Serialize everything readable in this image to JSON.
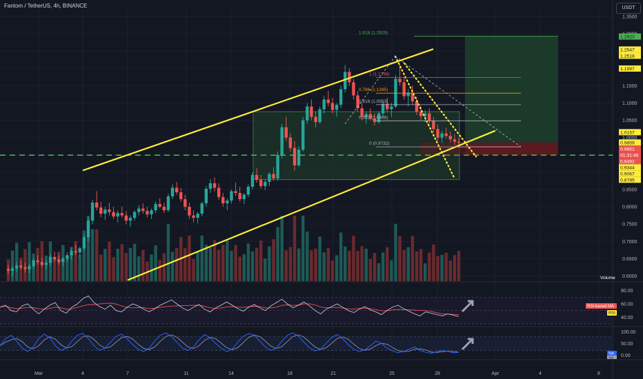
{
  "header": {
    "title": "Fantom / TetherUS, 4h, BINANCE",
    "currency": "USDT"
  },
  "colors": {
    "background": "#131722",
    "up": "#26a69a",
    "down": "#ef5350",
    "channel": "#ffeb3b",
    "support_dash": "#4caf50",
    "rsi": "#d1d4dc",
    "rsi_ma": "#ef5350",
    "stoch_k": "#2962ff",
    "stoch_d": "#9e9eb5",
    "target_zone": "#1b3a2a",
    "stop_zone": "#5a1a1f",
    "range_box": "#21402b"
  },
  "chart_data": {
    "type": "candlestick",
    "symbol": "Fantom / TetherUS",
    "timeframe": "4h",
    "exchange": "BINANCE",
    "y_axis": {
      "ticks": [
        "1.3500",
        "1.3000",
        "1.2500",
        "1.2000",
        "1.1500",
        "1.1000",
        "1.0500",
        "1.0000",
        "0.9500",
        "0.9000",
        "0.8500",
        "0.8000",
        "0.7500",
        "0.7000",
        "0.6500",
        "0.6000"
      ],
      "range": [
        0.585,
        1.37
      ]
    },
    "x_axis": {
      "ticks": [
        "Mar",
        "4",
        "7",
        "11",
        "14",
        "18",
        "21",
        "25",
        "28",
        "Apr",
        "4",
        "8"
      ]
    },
    "price_labels": [
      {
        "text": "1.2923",
        "value": 1.2923,
        "color": "#4caf50"
      },
      {
        "text": "1.2547",
        "value": 1.2547,
        "color": "#ffeb3b"
      },
      {
        "text": "1.2518",
        "value": 1.2518,
        "color": "#ffeb3b"
      },
      {
        "text": "1.1997",
        "value": 1.1997,
        "color": "#ffeb3b"
      },
      {
        "text": "1.0157",
        "value": 1.0157,
        "color": "#ffeb3b"
      },
      {
        "text": "0.9859",
        "value": 0.9859,
        "color": "#ffeb3b"
      },
      {
        "text": "0.9851",
        "value": 0.9851,
        "color": "#ef5350"
      },
      {
        "text": "01:31:45",
        "value": 0.9765,
        "color": "#ef5350"
      },
      {
        "text": "0.9492",
        "value": 0.9492,
        "color": "#ef5350"
      },
      {
        "text": "0.9344",
        "value": 0.9344,
        "color": "#ffeb3b"
      },
      {
        "text": "0.9067",
        "value": 0.9067,
        "color": "#ffeb3b"
      },
      {
        "text": "0.8785",
        "value": 0.8785,
        "color": "#ffeb3b"
      }
    ],
    "fib_levels": [
      {
        "label": "1.618 (1.2929)",
        "value": 1.2929
      },
      {
        "label": "1 (1.1738)",
        "value": 1.1738
      },
      {
        "label": "0.786 (1.1285)",
        "value": 1.1285
      },
      {
        "label": "0.618 (1.0953)",
        "value": 1.0953
      },
      {
        "label": "0.382 (1.0486)",
        "value": 1.0486
      },
      {
        "label": "0 (0.9732)",
        "value": 0.9732
      }
    ],
    "candles": [
      [
        0.62,
        0.632,
        0.605,
        0.615
      ],
      [
        0.615,
        0.628,
        0.6,
        0.622
      ],
      [
        0.622,
        0.64,
        0.612,
        0.63
      ],
      [
        0.63,
        0.645,
        0.618,
        0.625
      ],
      [
        0.625,
        0.638,
        0.61,
        0.62
      ],
      [
        0.62,
        0.635,
        0.608,
        0.628
      ],
      [
        0.628,
        0.65,
        0.62,
        0.645
      ],
      [
        0.645,
        0.66,
        0.632,
        0.64
      ],
      [
        0.64,
        0.652,
        0.625,
        0.632
      ],
      [
        0.632,
        0.645,
        0.62,
        0.638
      ],
      [
        0.638,
        0.662,
        0.63,
        0.655
      ],
      [
        0.655,
        0.67,
        0.64,
        0.648
      ],
      [
        0.648,
        0.66,
        0.632,
        0.64
      ],
      [
        0.64,
        0.655,
        0.628,
        0.65
      ],
      [
        0.65,
        0.668,
        0.64,
        0.66
      ],
      [
        0.66,
        0.68,
        0.648,
        0.672
      ],
      [
        0.672,
        0.69,
        0.66,
        0.668
      ],
      [
        0.668,
        0.685,
        0.655,
        0.68
      ],
      [
        0.68,
        0.72,
        0.672,
        0.712
      ],
      [
        0.712,
        0.77,
        0.7,
        0.76
      ],
      [
        0.76,
        0.82,
        0.75,
        0.812
      ],
      [
        0.812,
        0.845,
        0.79,
        0.798
      ],
      [
        0.798,
        0.815,
        0.77,
        0.78
      ],
      [
        0.78,
        0.8,
        0.762,
        0.792
      ],
      [
        0.792,
        0.812,
        0.775,
        0.785
      ],
      [
        0.785,
        0.8,
        0.765,
        0.772
      ],
      [
        0.772,
        0.79,
        0.755,
        0.782
      ],
      [
        0.782,
        0.8,
        0.768,
        0.775
      ],
      [
        0.775,
        0.788,
        0.75,
        0.76
      ],
      [
        0.76,
        0.775,
        0.742,
        0.768
      ],
      [
        0.768,
        0.79,
        0.76,
        0.785
      ],
      [
        0.785,
        0.805,
        0.775,
        0.795
      ],
      [
        0.795,
        0.81,
        0.78,
        0.788
      ],
      [
        0.788,
        0.8,
        0.77,
        0.778
      ],
      [
        0.778,
        0.795,
        0.765,
        0.79
      ],
      [
        0.79,
        0.815,
        0.782,
        0.808
      ],
      [
        0.808,
        0.825,
        0.795,
        0.8
      ],
      [
        0.8,
        0.812,
        0.782,
        0.79
      ],
      [
        0.79,
        0.838,
        0.785,
        0.83
      ],
      [
        0.83,
        0.865,
        0.822,
        0.855
      ],
      [
        0.855,
        0.872,
        0.835,
        0.842
      ],
      [
        0.842,
        0.855,
        0.815,
        0.822
      ],
      [
        0.822,
        0.835,
        0.79,
        0.8
      ],
      [
        0.8,
        0.812,
        0.765,
        0.775
      ],
      [
        0.775,
        0.79,
        0.755,
        0.768
      ],
      [
        0.768,
        0.785,
        0.752,
        0.78
      ],
      [
        0.78,
        0.815,
        0.772,
        0.81
      ],
      [
        0.81,
        0.86,
        0.8,
        0.852
      ],
      [
        0.852,
        0.88,
        0.84,
        0.868
      ],
      [
        0.868,
        0.885,
        0.845,
        0.855
      ],
      [
        0.855,
        0.868,
        0.82,
        0.828
      ],
      [
        0.828,
        0.84,
        0.8,
        0.81
      ],
      [
        0.81,
        0.825,
        0.79,
        0.818
      ],
      [
        0.818,
        0.85,
        0.81,
        0.845
      ],
      [
        0.845,
        0.87,
        0.832,
        0.84
      ],
      [
        0.84,
        0.858,
        0.815,
        0.822
      ],
      [
        0.822,
        0.84,
        0.808,
        0.835
      ],
      [
        0.835,
        0.865,
        0.828,
        0.858
      ],
      [
        0.858,
        0.9,
        0.85,
        0.892
      ],
      [
        0.892,
        0.912,
        0.87,
        0.878
      ],
      [
        0.878,
        0.892,
        0.852,
        0.86
      ],
      [
        0.86,
        0.88,
        0.848,
        0.872
      ],
      [
        0.872,
        0.9,
        0.86,
        0.895
      ],
      [
        0.895,
        0.915,
        0.875,
        0.882
      ],
      [
        0.882,
        0.96,
        0.875,
        0.95
      ],
      [
        0.95,
        1.04,
        0.94,
        1.03
      ],
      [
        1.03,
        1.06,
        0.99,
        1.0
      ],
      [
        1.0,
        1.012,
        0.96,
        0.97
      ],
      [
        0.97,
        0.99,
        0.905,
        0.92
      ],
      [
        0.92,
        0.975,
        0.915,
        0.965
      ],
      [
        0.965,
        1.06,
        0.96,
        1.05
      ],
      [
        1.05,
        1.1,
        1.04,
        1.09
      ],
      [
        1.09,
        1.11,
        1.05,
        1.06
      ],
      [
        1.06,
        1.075,
        1.03,
        1.045
      ],
      [
        1.045,
        1.09,
        1.04,
        1.082
      ],
      [
        1.082,
        1.12,
        1.07,
        1.11
      ],
      [
        1.11,
        1.135,
        1.09,
        1.1
      ],
      [
        1.1,
        1.115,
        1.07,
        1.08
      ],
      [
        1.08,
        1.1,
        1.06,
        1.095
      ],
      [
        1.095,
        1.15,
        1.085,
        1.14
      ],
      [
        1.14,
        1.21,
        1.13,
        1.19
      ],
      [
        1.19,
        1.2,
        1.15,
        1.16
      ],
      [
        1.16,
        1.17,
        1.11,
        1.122
      ],
      [
        1.122,
        1.135,
        1.075,
        1.085
      ],
      [
        1.085,
        1.1,
        1.05,
        1.06
      ],
      [
        1.06,
        1.075,
        1.04,
        1.068
      ],
      [
        1.068,
        1.085,
        1.05,
        1.055
      ],
      [
        1.055,
        1.07,
        1.035,
        1.045
      ],
      [
        1.045,
        1.075,
        1.04,
        1.07
      ],
      [
        1.07,
        1.105,
        1.06,
        1.098
      ],
      [
        1.098,
        1.115,
        1.072,
        1.082
      ],
      [
        1.082,
        1.1,
        1.06,
        1.09
      ],
      [
        1.09,
        1.18,
        1.085,
        1.17
      ],
      [
        1.17,
        1.21,
        1.15,
        1.16
      ],
      [
        1.16,
        1.175,
        1.11,
        1.12
      ],
      [
        1.12,
        1.14,
        1.09,
        1.13
      ],
      [
        1.13,
        1.15,
        1.095,
        1.105
      ],
      [
        1.105,
        1.118,
        1.065,
        1.075
      ],
      [
        1.075,
        1.092,
        1.05,
        1.062
      ],
      [
        1.062,
        1.08,
        1.045,
        1.07
      ],
      [
        1.07,
        1.085,
        1.04,
        1.048
      ],
      [
        1.048,
        1.06,
        1.015,
        1.025
      ],
      [
        1.025,
        1.038,
        0.99,
        1.0
      ],
      [
        1.0,
        1.02,
        0.985,
        1.012
      ],
      [
        1.012,
        1.028,
        0.998,
        1.005
      ],
      [
        1.005,
        1.018,
        0.985,
        0.995
      ],
      [
        0.995,
        1.01,
        0.978,
        0.988
      ],
      [
        0.988,
        1.0,
        0.97,
        0.985
      ]
    ],
    "volume_label": "Volume",
    "rsi": {
      "labels": [
        "RSI-based MA",
        "RSI"
      ],
      "ticks": [
        "80.00",
        "60.00",
        "40.00"
      ],
      "range": [
        30,
        90
      ],
      "values": [
        55,
        58,
        50,
        48,
        57,
        60,
        52,
        45,
        52,
        58,
        62,
        50,
        46,
        55,
        60,
        68,
        72,
        62,
        56,
        52,
        58,
        50,
        48,
        55,
        60,
        57,
        52,
        48,
        53,
        58,
        62,
        66,
        60,
        54,
        50,
        55,
        59,
        52,
        48,
        54,
        58,
        63,
        58,
        53,
        49,
        55,
        59,
        54,
        50,
        57,
        62,
        67,
        60,
        54,
        58,
        63,
        57,
        50,
        45,
        52,
        56,
        60,
        55,
        50,
        47,
        52,
        56,
        51,
        48,
        44,
        50,
        55,
        58,
        53,
        49,
        45,
        42,
        48,
        46,
        44,
        42,
        45,
        43,
        41
      ]
    },
    "stoch": {
      "labels": [
        "%K",
        "%D"
      ],
      "ticks": [
        "100.00",
        "50.00",
        "0.00"
      ],
      "range": [
        -8,
        110
      ],
      "values": [
        40,
        70,
        85,
        60,
        30,
        15,
        35,
        70,
        90,
        75,
        40,
        20,
        30,
        60,
        85,
        92,
        70,
        40,
        20,
        30,
        55,
        80,
        90,
        70,
        45,
        25,
        15,
        30,
        60,
        85,
        95,
        80,
        55,
        30,
        20,
        35,
        65,
        88,
        75,
        50,
        30,
        15,
        25,
        55,
        80,
        92,
        85,
        60,
        35,
        20,
        30,
        60,
        85,
        95,
        80,
        55,
        30,
        18,
        25,
        50,
        75,
        88,
        70,
        45,
        25,
        15,
        22,
        40,
        60,
        50,
        30,
        18,
        10,
        15,
        25,
        35,
        20,
        12,
        8,
        14,
        20,
        16,
        10,
        12
      ]
    }
  }
}
